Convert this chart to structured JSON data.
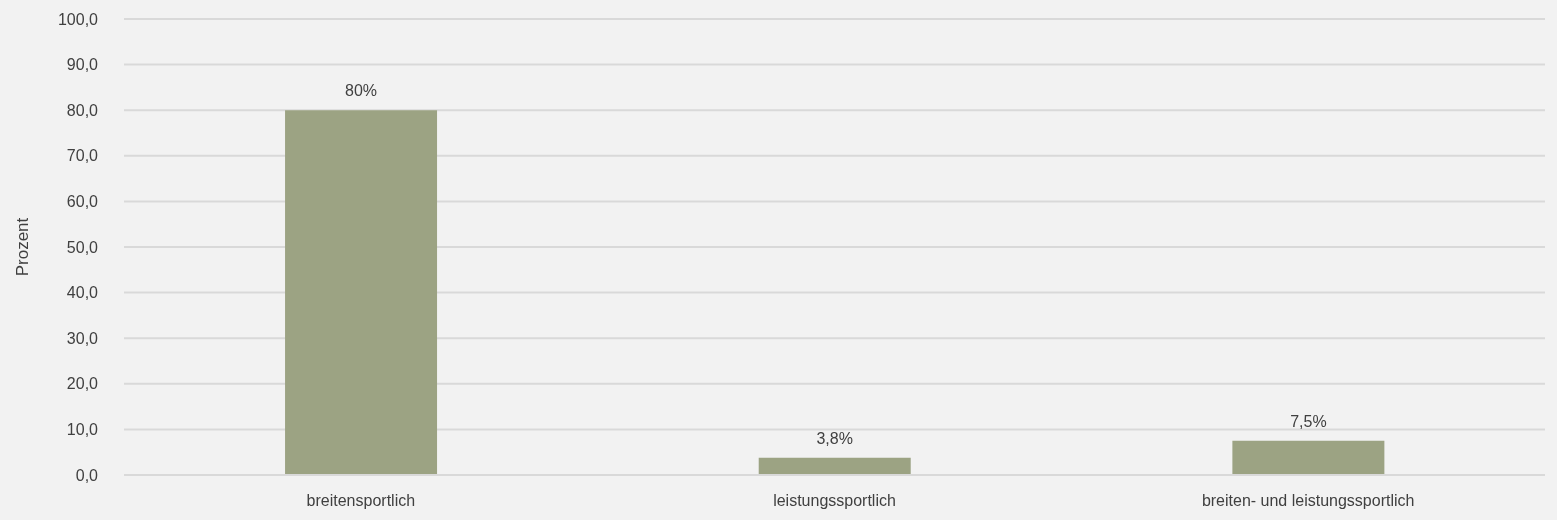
{
  "chart_data": {
    "type": "bar",
    "ylabel": "Prozent",
    "categories": [
      "breitensportlich",
      "leistungssportlich",
      "breiten- und leistungssportlich"
    ],
    "values": [
      80,
      3.8,
      7.5
    ],
    "value_labels": [
      "80%",
      "3,8%",
      "7,5%"
    ],
    "color": "#9ca383",
    "ylim": [
      0,
      100
    ],
    "yticks": [
      {
        "value": 0,
        "label": "0,0"
      },
      {
        "value": 10,
        "label": "10,0"
      },
      {
        "value": 20,
        "label": "20,0"
      },
      {
        "value": 30,
        "label": "30,0"
      },
      {
        "value": 40,
        "label": "40,0"
      },
      {
        "value": 50,
        "label": "50,0"
      },
      {
        "value": 60,
        "label": "60,0"
      },
      {
        "value": 70,
        "label": "70,0"
      },
      {
        "value": 80,
        "label": "80,0"
      },
      {
        "value": 90,
        "label": "90,0"
      },
      {
        "value": 100,
        "label": "100,0"
      }
    ],
    "grid": "y"
  }
}
